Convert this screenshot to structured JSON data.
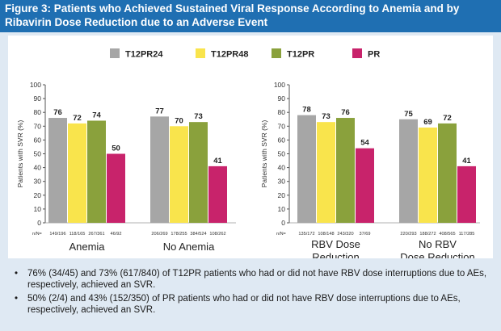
{
  "title": {
    "line1": "Figure 3: Patients who Achieved Sustained Viral Response According to Anemia and by",
    "line2": "Ribavirin Dose Reduction due to an Adverse Event"
  },
  "legend": [
    "T12PR24",
    "T12PR48",
    "T12PR",
    "PR"
  ],
  "colors": {
    "T12PR24": "#a6a6a6",
    "T12PR48": "#f9e44c",
    "T12PR": "#8aa13c",
    "PR": "#c8236b"
  },
  "chart_data": [
    {
      "type": "bar",
      "ylabel": "Patients with SVR (%)",
      "ylim": [
        0,
        100
      ],
      "yticks": [
        0,
        10,
        20,
        30,
        40,
        50,
        60,
        70,
        80,
        90,
        100
      ],
      "n_label": "n/N=",
      "categories": [
        "Anemia",
        "No Anemia"
      ],
      "series": [
        {
          "name": "T12PR24",
          "values": [
            76,
            77
          ]
        },
        {
          "name": "T12PR48",
          "values": [
            72,
            70
          ]
        },
        {
          "name": "T12PR",
          "values": [
            74,
            73
          ]
        },
        {
          "name": "PR",
          "values": [
            50,
            41
          ]
        }
      ],
      "n": [
        [
          "149/196",
          "118/165",
          "267/361",
          "46/92"
        ],
        [
          "206/269",
          "178/255",
          "384/524",
          "108/262"
        ]
      ]
    },
    {
      "type": "bar",
      "ylabel": "Patients with SVR (%)",
      "ylim": [
        0,
        100
      ],
      "yticks": [
        0,
        10,
        20,
        30,
        40,
        50,
        60,
        70,
        80,
        90,
        100
      ],
      "n_label": "n/N=",
      "categories": [
        "RBV Dose Reduction",
        "No RBV Dose Reduction"
      ],
      "category_lines": [
        [
          "RBV Dose",
          "Reduction"
        ],
        [
          "No RBV",
          "Dose Reduction"
        ]
      ],
      "series": [
        {
          "name": "T12PR24",
          "values": [
            78,
            75
          ]
        },
        {
          "name": "T12PR48",
          "values": [
            73,
            69
          ]
        },
        {
          "name": "T12PR",
          "values": [
            76,
            72
          ]
        },
        {
          "name": "PR",
          "values": [
            54,
            41
          ]
        }
      ],
      "n": [
        [
          "135/172",
          "108/148",
          "243/320",
          "37/69"
        ],
        [
          "220/293",
          "188/272",
          "408/565",
          "117/285"
        ]
      ]
    }
  ],
  "notes": [
    "76% (34/45) and 73% (617/840) of T12PR patients who had or did not have RBV dose interruptions due to AEs, respectively, achieved an SVR.",
    "50% (2/4) and 43% (152/350) of PR patients who had or did not have RBV dose interruptions due to AEs, respectively, achieved an SVR."
  ],
  "bullet": "•"
}
